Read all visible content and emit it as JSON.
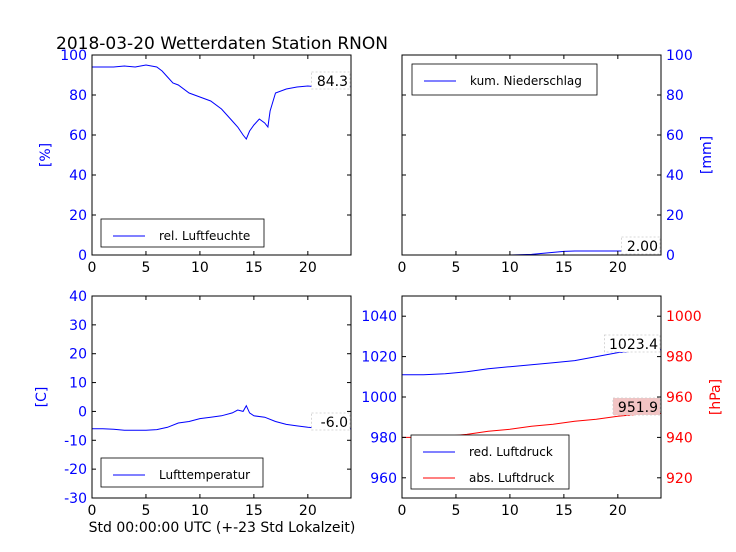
{
  "title": "2018-03-20 Wetterdaten Station RNON",
  "footer": "Std 00:00:00 UTC (+-23 Std Lokalzeit)",
  "colors": {
    "blue": "#0000ff",
    "red": "#ff0000",
    "black": "#000000",
    "highlight": "#f2c4c4"
  },
  "chart_data": [
    {
      "type": "line",
      "ylabel": "[%]",
      "xlim": [
        0,
        24
      ],
      "ylim": [
        0,
        100
      ],
      "xticks": [
        0,
        5,
        10,
        15,
        20
      ],
      "yticks": [
        0,
        20,
        40,
        60,
        80,
        100
      ],
      "axis_side": "left",
      "legend": "bottom-left",
      "annotation": "84.3",
      "series": [
        {
          "name": "rel. Luftfeuchte",
          "color": "#0000ff",
          "x": [
            0,
            1,
            2,
            3,
            4,
            5,
            5.5,
            6,
            6.5,
            7,
            7.5,
            8,
            9,
            10,
            11,
            12,
            12.5,
            13,
            13.5,
            14,
            14.3,
            14.6,
            15,
            15.5,
            16,
            16.3,
            16.5,
            17,
            18,
            19,
            20,
            21,
            22,
            23,
            24
          ],
          "y": [
            94,
            94,
            94,
            94.5,
            94,
            95,
            94.5,
            94,
            92,
            89,
            86,
            85,
            81,
            79,
            77,
            73,
            70,
            67,
            64,
            60,
            58,
            62,
            65,
            68,
            66,
            64,
            72,
            81,
            83,
            84,
            84.5,
            84,
            84.5,
            84,
            84.3
          ]
        }
      ]
    },
    {
      "type": "line",
      "ylabel": "[mm]",
      "xlim": [
        0,
        24
      ],
      "ylim": [
        0,
        100
      ],
      "xticks": [
        0,
        5,
        10,
        15,
        20
      ],
      "yticks": [
        0,
        20,
        40,
        60,
        80,
        100
      ],
      "axis_side": "right",
      "legend": "top-left",
      "annotation": "2.00",
      "series": [
        {
          "name": "kum. Niederschlag",
          "color": "#0000ff",
          "x": [
            0,
            10,
            12,
            13,
            14,
            15,
            16,
            20,
            24
          ],
          "y": [
            0,
            0,
            0.3,
            0.8,
            1.3,
            1.8,
            2.0,
            2.0,
            2.0
          ]
        }
      ]
    },
    {
      "type": "line",
      "ylabel": "[C]",
      "xlim": [
        0,
        24
      ],
      "ylim": [
        -30,
        40
      ],
      "xticks": [
        0,
        5,
        10,
        15,
        20
      ],
      "yticks": [
        -30,
        -20,
        -10,
        0,
        10,
        20,
        30,
        40
      ],
      "axis_side": "left",
      "legend": "bottom-left",
      "annotation": "-6.0",
      "series": [
        {
          "name": "Lufttemperatur",
          "color": "#0000ff",
          "x": [
            0,
            1,
            2,
            3,
            4,
            5,
            6,
            7,
            8,
            9,
            10,
            11,
            12,
            13,
            13.5,
            14,
            14.3,
            14.6,
            15,
            16,
            17,
            18,
            19,
            20,
            21,
            22,
            23,
            24
          ],
          "y": [
            -6,
            -6,
            -6.2,
            -6.5,
            -6.5,
            -6.5,
            -6.3,
            -5.5,
            -4,
            -3.5,
            -2.5,
            -2,
            -1.5,
            -0.5,
            0.5,
            0,
            2,
            -0.5,
            -1.5,
            -2,
            -3.5,
            -4.5,
            -5,
            -5.5,
            -5.8,
            -6,
            -6,
            -6
          ]
        }
      ]
    },
    {
      "type": "line",
      "xlim": [
        0,
        24
      ],
      "xticks": [
        0,
        5,
        10,
        15,
        20
      ],
      "ylim": [
        950,
        1050
      ],
      "yticks": [
        960,
        980,
        1000,
        1020,
        1040
      ],
      "ylim_right": [
        910,
        1010
      ],
      "yticks_right": [
        920,
        940,
        960,
        980,
        1000
      ],
      "ylabel_right": "[hPa]",
      "legend": "bottom-left",
      "annotations": [
        "1023.4",
        "951.9"
      ],
      "series": [
        {
          "name": "red. Luftdruck",
          "color": "#0000ff",
          "axis": "left",
          "x": [
            0,
            2,
            4,
            6,
            8,
            10,
            12,
            14,
            16,
            18,
            20,
            22,
            24
          ],
          "y": [
            1011,
            1011,
            1011.5,
            1012.5,
            1014,
            1015,
            1016,
            1017,
            1018,
            1020,
            1022,
            1023,
            1023.4
          ]
        },
        {
          "name": "abs. Luftdruck",
          "color": "#ff0000",
          "axis": "right",
          "x": [
            0,
            2,
            4,
            6,
            8,
            10,
            12,
            14,
            16,
            18,
            20,
            22,
            24
          ],
          "y": [
            940,
            940,
            940.5,
            941.5,
            943,
            944,
            945.5,
            946.5,
            948,
            949,
            950.5,
            951.5,
            951.9
          ]
        }
      ]
    }
  ]
}
